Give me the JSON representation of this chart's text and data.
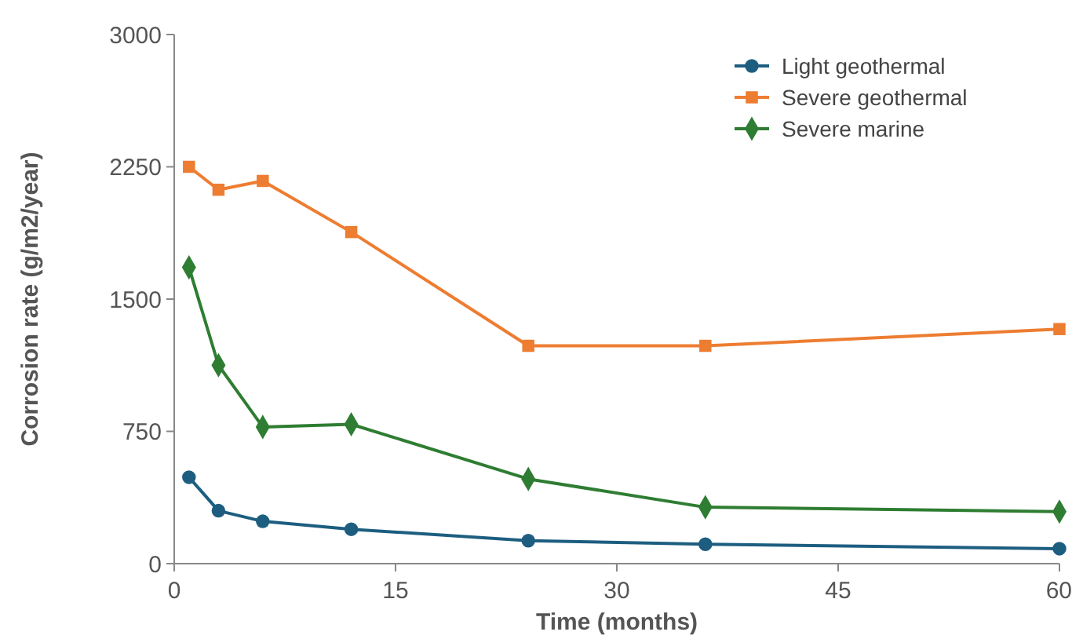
{
  "chart_data": {
    "type": "line",
    "xlabel": "Time (months)",
    "ylabel": "Corrosion rate (g/m2/year)",
    "xlim": [
      0,
      60
    ],
    "xticks": [
      0,
      15,
      30,
      45,
      60
    ],
    "ylim": [
      0,
      3000
    ],
    "yticks": [
      0,
      750,
      1500,
      2250,
      3000
    ],
    "x": [
      1,
      3,
      6,
      12,
      24,
      36,
      60
    ],
    "grid": false,
    "legend": "top right",
    "line_style": "solid",
    "series": [
      {
        "name": "Light geothermal",
        "color": "#1d5e80",
        "marker": "circle",
        "values": [
          490,
          300,
          240,
          195,
          130,
          110,
          85
        ]
      },
      {
        "name": "Severe geothermal",
        "color": "#ed7d31",
        "marker": "square",
        "values": [
          2250,
          2120,
          2170,
          1880,
          1235,
          1235,
          1330
        ]
      },
      {
        "name": "Severe marine",
        "color": "#2e7d32",
        "marker": "diamond",
        "values": [
          1680,
          1125,
          775,
          790,
          480,
          320,
          295
        ]
      }
    ]
  }
}
